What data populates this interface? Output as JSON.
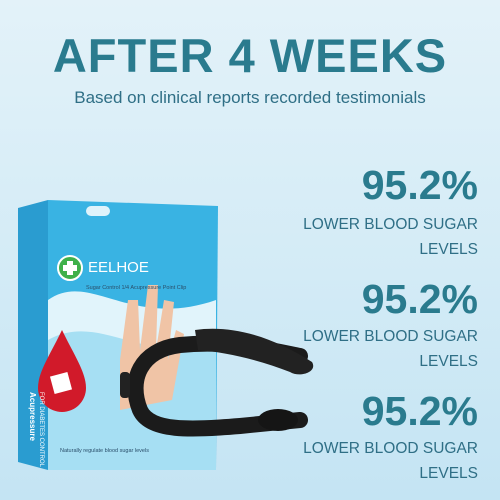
{
  "header": {
    "title": "AFTER 4 WEEKS",
    "subtitle": "Based on clinical reports recorded testimonials"
  },
  "stats": [
    {
      "value": "95.2%",
      "label": "LOWER BLOOD SUGAR LEVELS"
    },
    {
      "value": "95.2%",
      "label": "LOWER BLOOD SUGAR LEVELS"
    },
    {
      "value": "95.2%",
      "label": "LOWER BLOOD SUGAR LEVELS"
    }
  ],
  "product": {
    "brand": "EELHOE",
    "name": "Sugar Control 1/4 Acupressure Point Clip",
    "tagline": "Naturally regulate blood sugar levels",
    "side_title": "Acupressure",
    "side_subtitle": "FOR DIABETES CONTROL"
  }
}
